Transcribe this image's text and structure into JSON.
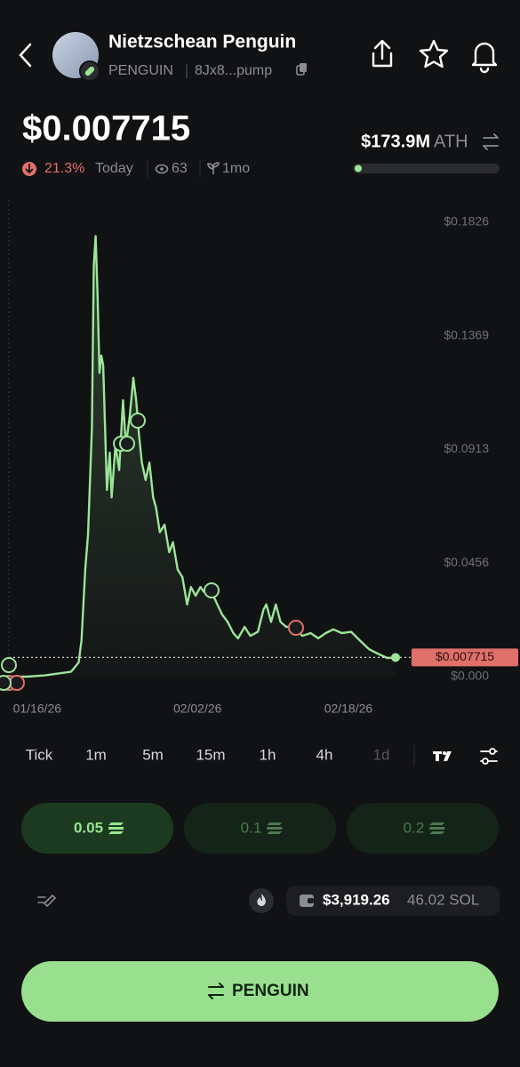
{
  "header": {
    "name": "Nietzschean Penguin",
    "ticker": "PENGUIN",
    "address": "8Jx8...pump"
  },
  "stats": {
    "change": "21.3%",
    "period": "Today",
    "views": "63",
    "age": "1mo",
    "ath_value": "$173.9M",
    "ath_label": "ATH"
  },
  "chart_data": {
    "type": "line",
    "color": "#9be597",
    "x": [
      -3,
      -1.1,
      0.8,
      2.7,
      3.6,
      4.4,
      4.7,
      5.1,
      5.4,
      5.8,
      6.0,
      6.2,
      6.4,
      6.6,
      6.8,
      7.0,
      7.2,
      7.4,
      7.7,
      7.9,
      8.3,
      8.7,
      9.1,
      9.4,
      9.8,
      10.2,
      10.5,
      10.8,
      11.1,
      11.5,
      11.9,
      12.3,
      12.6,
      13.0,
      13.5,
      14.0,
      14.4,
      14.9,
      15.4,
      15.9,
      16.3,
      16.8,
      17.3,
      17.7,
      18.5,
      19.1,
      19.6,
      20.2,
      20.8,
      21.3,
      22.0,
      22.6,
      23.4,
      24.0,
      24.3,
      24.8,
      25.3,
      25.8,
      26.4,
      27.3,
      28.1,
      29.0,
      29.8,
      30.6,
      31.4,
      32.3,
      33.3,
      34.2,
      35.2,
      36.1,
      37.1,
      38.0
    ],
    "values": [
      0,
      0,
      0.0005,
      0.0015,
      0.002,
      0.0057,
      0.0146,
      0.043,
      0.0575,
      0.1,
      0.165,
      0.177,
      0.154,
      0.122,
      0.129,
      0.125,
      0.1,
      0.075,
      0.09,
      0.072,
      0.093,
      0.083,
      0.111,
      0.093,
      0.104,
      0.12,
      0.111,
      0.097,
      0.086,
      0.079,
      0.086,
      0.072,
      0.068,
      0.058,
      0.061,
      0.05,
      0.054,
      0.043,
      0.04,
      0.029,
      0.036,
      0.0325,
      0.036,
      0.034,
      0.034,
      0.029,
      0.025,
      0.022,
      0.0175,
      0.0154,
      0.02,
      0.0164,
      0.018,
      0.027,
      0.029,
      0.022,
      0.029,
      0.022,
      0.02,
      0.02,
      0.0164,
      0.0175,
      0.0154,
      0.0175,
      0.019,
      0.0175,
      0.018,
      0.0146,
      0.011,
      0.0093,
      0.0075,
      0.0077
    ],
    "xlim": [
      -3,
      38
    ],
    "xticks": [
      {
        "value": 0,
        "label": "01/16/26"
      },
      {
        "value": 17,
        "label": "02/02/26"
      },
      {
        "value": 33,
        "label": "02/18/26"
      }
    ],
    "ylim": [
      0,
      0.19
    ],
    "yticks": [
      {
        "value": 0.1826,
        "label": "$0.1826"
      },
      {
        "value": 0.1369,
        "label": "$0.1369"
      },
      {
        "value": 0.0913,
        "label": "$0.0913"
      },
      {
        "value": 0.0456,
        "label": "$0.0456"
      },
      {
        "value": 0,
        "label": "$0.000"
      }
    ],
    "grid": false,
    "current_price": {
      "value": 0.007715,
      "label": "$0.007715"
    }
  },
  "timeframes": [
    "Tick",
    "1m",
    "5m",
    "15m",
    "1h",
    "4h",
    "1d"
  ],
  "amounts": [
    "0.05",
    "0.1",
    "0.2"
  ],
  "wallet": {
    "usd": "$3,919.26",
    "sol": "46.02 SOL"
  }
}
